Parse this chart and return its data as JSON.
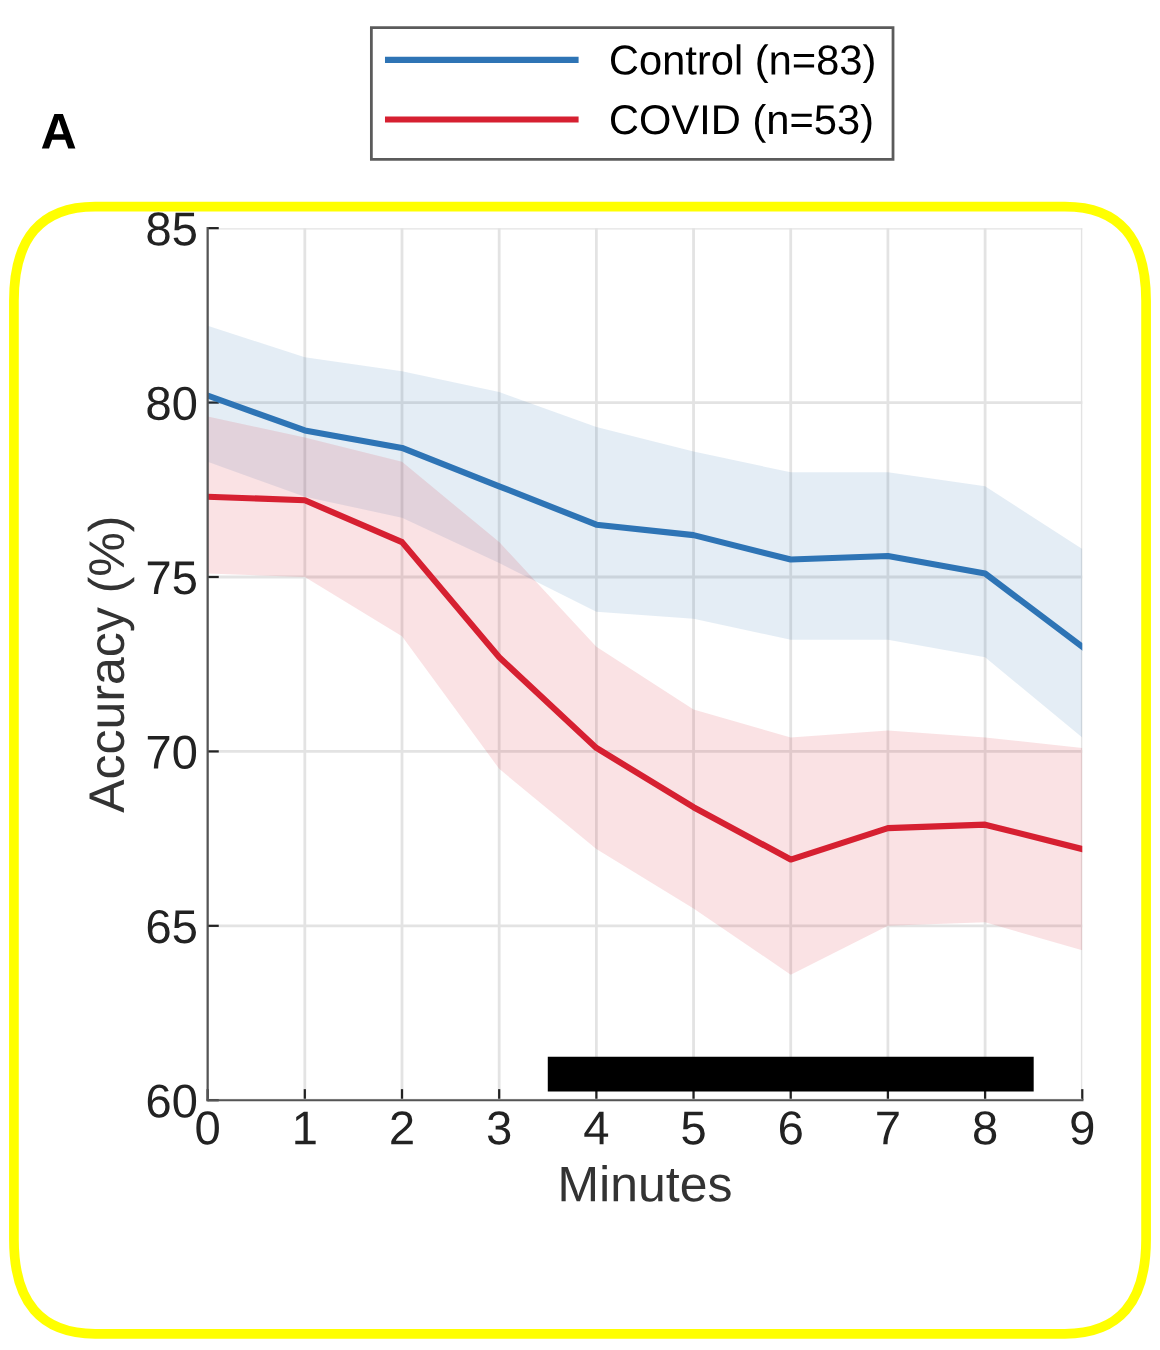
{
  "chart_data": {
    "type": "line",
    "xlabel": "Minutes",
    "ylabel": "Accuracy (%)",
    "x": [
      0,
      1,
      2,
      3,
      4,
      5,
      6,
      7,
      8,
      9
    ],
    "series": [
      {
        "name": "Control (n=83)",
        "color": "#2e74b5",
        "values": [
          80.2,
          79.2,
          78.7,
          77.6,
          76.5,
          76.2,
          75.5,
          75.6,
          75.1,
          73.0
        ],
        "lower": [
          78.3,
          77.3,
          76.7,
          75.4,
          74.0,
          73.8,
          73.2,
          73.2,
          72.7,
          70.4
        ],
        "upper": [
          82.2,
          81.3,
          80.9,
          80.3,
          79.3,
          78.6,
          78.0,
          78.0,
          77.6,
          75.8
        ]
      },
      {
        "name": "COVID (n=53)",
        "color": "#d62031",
        "values": [
          77.3,
          77.2,
          76.0,
          72.7,
          70.1,
          68.4,
          66.9,
          67.8,
          67.9,
          67.2
        ],
        "lower": [
          75.1,
          75.0,
          73.3,
          69.5,
          67.2,
          65.5,
          63.6,
          65.0,
          65.1,
          64.3
        ],
        "upper": [
          79.6,
          79.0,
          78.3,
          76.0,
          73.0,
          71.2,
          70.4,
          70.6,
          70.4,
          70.1
        ]
      }
    ],
    "xlim": [
      0,
      9
    ],
    "xticks": [
      0,
      1,
      2,
      3,
      4,
      5,
      6,
      7,
      8,
      9
    ],
    "ylim": [
      60,
      85
    ],
    "yticks": [
      60,
      65,
      70,
      75,
      80,
      85
    ],
    "bands": [
      {
        "axis": "x",
        "from": 3.5,
        "to": 8.5,
        "color": "#000000"
      }
    ],
    "annotations": [
      "A"
    ],
    "grid": true,
    "legend": "top",
    "marker": "none",
    "line_style": "solid"
  }
}
